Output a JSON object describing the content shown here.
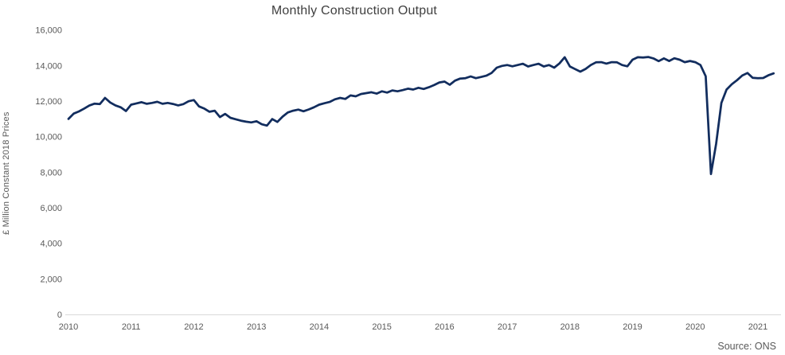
{
  "title": "Monthly Construction Output",
  "source": "Source: ONS",
  "y_axis": {
    "label": "£ Million Constant 2018 Prices",
    "tick_labels": [
      "0",
      "2,000",
      "4,000",
      "6,000",
      "8,000",
      "10,000",
      "12,000",
      "14,000",
      "16,000"
    ],
    "tick_values": [
      0,
      2000,
      4000,
      6000,
      8000,
      10000,
      12000,
      14000,
      16000
    ]
  },
  "x_axis": {
    "tick_labels": [
      "2010",
      "2011",
      "2012",
      "2013",
      "2014",
      "2015",
      "2016",
      "2017",
      "2018",
      "2019",
      "2020",
      "2021"
    ]
  },
  "colors": {
    "line": "#122d5e",
    "title_text": "#3f3f3f",
    "axis_text": "#595959",
    "axis_line": "#d9d9d9",
    "background": "#ffffff"
  },
  "chart_data": {
    "type": "line",
    "title": "Monthly Construction Output",
    "xlabel": "",
    "ylabel": "£ Million Constant 2018 Prices",
    "ylim": [
      0,
      16000
    ],
    "x_tick_years": [
      2010,
      2011,
      2012,
      2013,
      2014,
      2015,
      2016,
      2017,
      2018,
      2019,
      2020,
      2021
    ],
    "grid": false,
    "legend_position": "none",
    "frequency": "monthly",
    "start": "2010-01",
    "end": "2021-04",
    "series": [
      {
        "name": "Monthly construction output, £ million constant 2018 prices",
        "values": [
          11000,
          11300,
          11420,
          11580,
          11750,
          11860,
          11830,
          12180,
          11920,
          11760,
          11650,
          11440,
          11800,
          11870,
          11940,
          11850,
          11900,
          11960,
          11850,
          11900,
          11840,
          11760,
          11830,
          11990,
          12060,
          11700,
          11580,
          11400,
          11460,
          11100,
          11280,
          11060,
          10980,
          10900,
          10840,
          10800,
          10870,
          10700,
          10620,
          10990,
          10830,
          11130,
          11360,
          11460,
          11520,
          11430,
          11530,
          11650,
          11800,
          11880,
          11950,
          12100,
          12180,
          12120,
          12320,
          12270,
          12400,
          12450,
          12500,
          12420,
          12550,
          12480,
          12600,
          12550,
          12620,
          12700,
          12650,
          12750,
          12680,
          12780,
          12900,
          13050,
          13100,
          12920,
          13150,
          13270,
          13290,
          13390,
          13290,
          13360,
          13430,
          13580,
          13880,
          13980,
          14030,
          13960,
          14030,
          14100,
          13950,
          14030,
          14100,
          13950,
          14030,
          13880,
          14120,
          14470,
          13950,
          13800,
          13660,
          13810,
          14030,
          14180,
          14190,
          14110,
          14190,
          14180,
          14030,
          13960,
          14330,
          14470,
          14450,
          14480,
          14400,
          14250,
          14400,
          14260,
          14410,
          14330,
          14190,
          14260,
          14190,
          14030,
          13400,
          7900,
          9600,
          11900,
          12650,
          12950,
          13180,
          13440,
          13580,
          13310,
          13290,
          13300,
          13450,
          13560
        ]
      }
    ]
  }
}
